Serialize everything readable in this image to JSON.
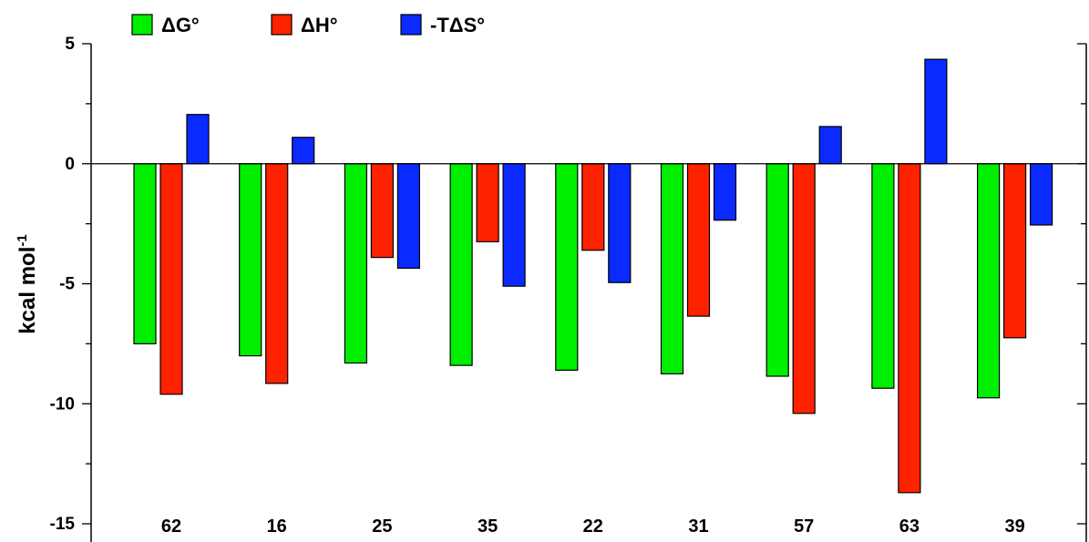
{
  "chart_data": {
    "type": "bar",
    "title": "",
    "xlabel": "",
    "ylabel": "kcal mol",
    "ylabel_superscript": "-1",
    "ylim": [
      -15,
      5
    ],
    "yticks_major": [
      5,
      0,
      -5,
      -10,
      -15
    ],
    "ytick_labels": [
      "5",
      "0",
      "-5",
      "-10",
      "-15"
    ],
    "grid": false,
    "legend_position": "top-left",
    "categories": [
      "62",
      "16",
      "25",
      "35",
      "22",
      "31",
      "57",
      "63",
      "39"
    ],
    "series": [
      {
        "name": "ΔG°",
        "color": "#00ee00",
        "values": [
          -7.5,
          -8.0,
          -8.3,
          -8.4,
          -8.6,
          -8.75,
          -8.85,
          -9.35,
          -9.75
        ]
      },
      {
        "name": "ΔH°",
        "color": "#ff2200",
        "values": [
          -9.6,
          -9.15,
          -3.9,
          -3.25,
          -3.6,
          -6.35,
          -10.4,
          -13.7,
          -7.25
        ]
      },
      {
        "name": "-TΔS°",
        "color": "#0a2aff",
        "values": [
          2.05,
          1.1,
          -4.35,
          -5.1,
          -4.95,
          -2.35,
          1.55,
          4.35,
          -2.55
        ]
      }
    ]
  }
}
